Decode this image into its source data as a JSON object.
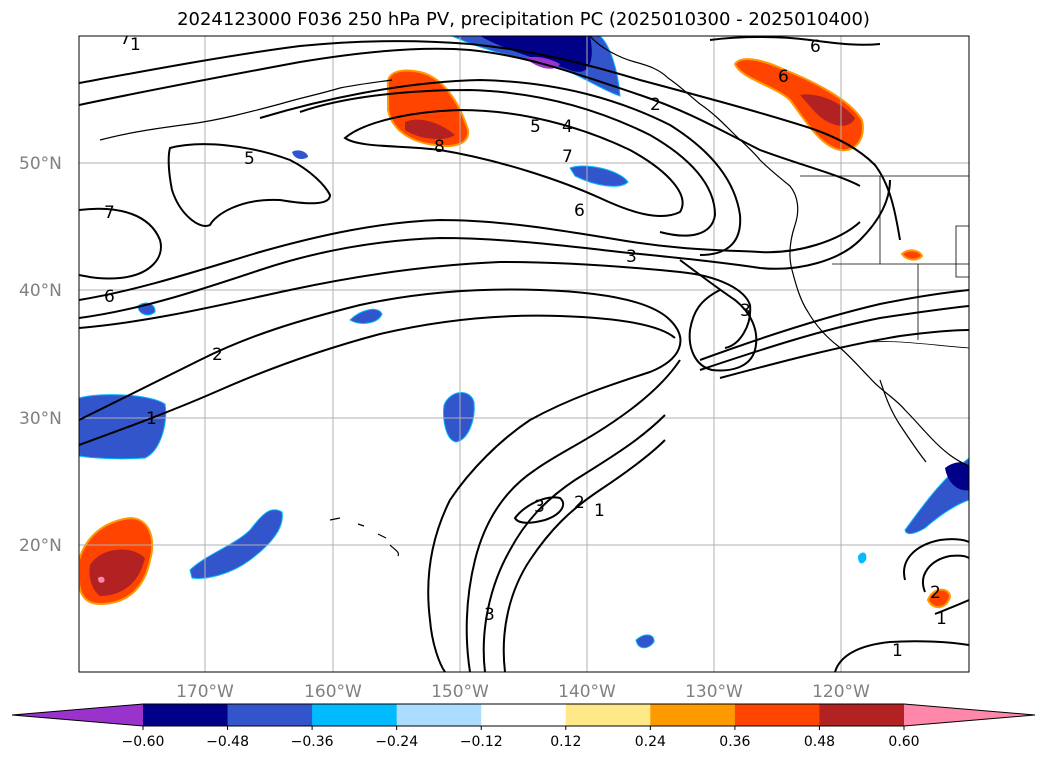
{
  "title": "2024123000 F036 250 hPa PV, precipitation PC (2025010300 - 2025010400)",
  "lat_labels": [
    "50°N",
    "40°N",
    "30°N",
    "20°N"
  ],
  "lon_labels": [
    "170°W",
    "160°W",
    "150°W",
    "140°W",
    "130°W",
    "120°W"
  ],
  "contour_labels": [
    "1",
    "6",
    "5",
    "4",
    "2",
    "6",
    "7",
    "5",
    "8",
    "7",
    "6",
    "3",
    "3",
    "6",
    "2",
    "1",
    "3",
    "2",
    "1",
    "3",
    "2",
    "1",
    "1",
    "7"
  ],
  "colorbar": {
    "ticks": [
      "−0.60",
      "−0.48",
      "−0.36",
      "−0.24",
      "−0.12",
      "0.12",
      "0.24",
      "0.36",
      "0.48",
      "0.60"
    ],
    "colors": [
      "#9933cc",
      "#000088",
      "#3355cc",
      "#00bbff",
      "#aaddff",
      "#ffffff",
      "#ffe888",
      "#ff9900",
      "#ff4400",
      "#b22222",
      "#ff88aa"
    ]
  },
  "colors": {
    "contour": "#000000",
    "grid": "#b0b0b0",
    "coast": "#000000",
    "axis_label": "#808080"
  }
}
